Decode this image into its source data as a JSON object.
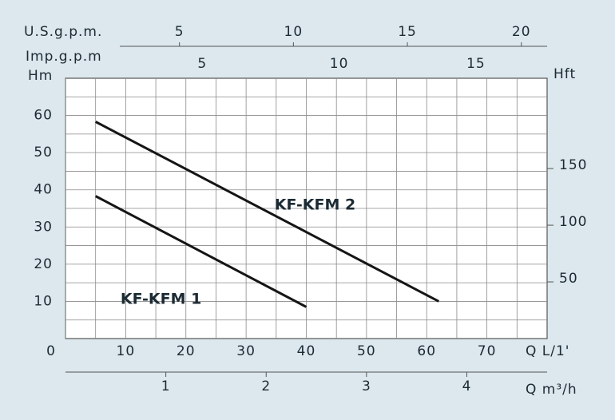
{
  "chart_data": {
    "type": "line",
    "xlabel": "Q L/1'",
    "ylabel": "Hm",
    "y2label": "Hft",
    "xlim": [
      0,
      80
    ],
    "xticks": [
      0,
      10,
      20,
      30,
      40,
      50,
      60,
      70
    ],
    "ylim": [
      0,
      70
    ],
    "yticks": [
      10,
      20,
      30,
      40,
      50,
      60
    ],
    "y2lim": [
      0,
      229.66
    ],
    "y2ticks": [
      50,
      100,
      150
    ],
    "grid": true,
    "top_axes": [
      {
        "label": "U.S.g.p.m.",
        "xlim": [
          0,
          21.13
        ],
        "xticks": [
          5,
          10,
          15,
          20
        ]
      },
      {
        "label": "Imp.g.p.m",
        "xlim": [
          0,
          17.6
        ],
        "xticks": [
          5,
          10,
          15
        ]
      }
    ],
    "bottom_axis": {
      "label": "Q m³/h",
      "xlim": [
        0,
        4.8
      ],
      "xticks": [
        1,
        2,
        3,
        4
      ]
    },
    "series": [
      {
        "name": "KF-KFM 1",
        "color": "#151515",
        "x": [
          5,
          40
        ],
        "values": [
          38.3,
          8.5
        ]
      },
      {
        "name": "KF-KFM 2",
        "color": "#151515",
        "x": [
          5,
          62
        ],
        "values": [
          58.3,
          10
        ]
      }
    ]
  }
}
